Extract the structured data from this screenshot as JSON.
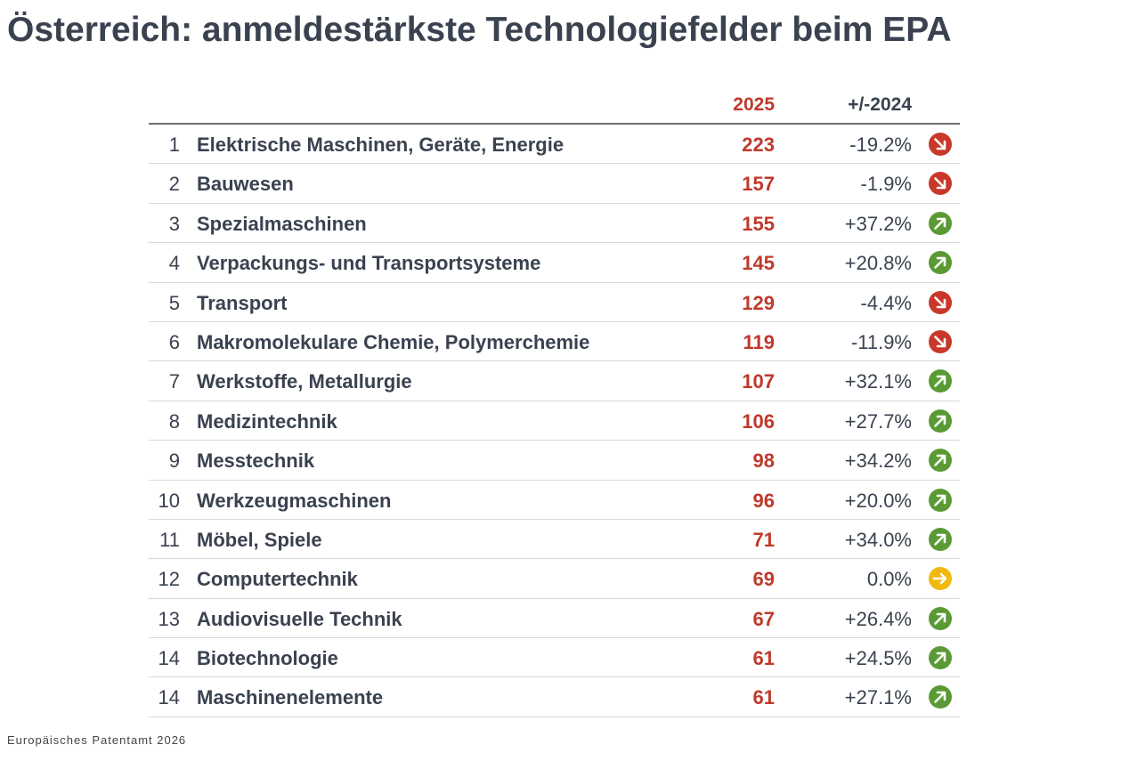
{
  "title": "Österreich: anmeldestärkste Technologiefelder beim EPA",
  "table": {
    "header": [
      "2025",
      "+/-2024"
    ],
    "rows": [
      [
        "1",
        "Elektrische Maschinen, Geräte, Energie",
        "223",
        "-19.2%"
      ],
      [
        "2",
        "Bauwesen",
        "157",
        "-1.9%"
      ],
      [
        "3",
        "Spezialmaschinen",
        "155",
        "+37.2%"
      ],
      [
        "4",
        "Verpackungs- und Transportsysteme",
        "145",
        "+20.8%"
      ],
      [
        "5",
        "Transport",
        "129",
        "-4.4%"
      ],
      [
        "6",
        "Makromolekulare Chemie, Polymerchemie",
        "119",
        "-11.9%"
      ],
      [
        "7",
        "Werkstoffe, Metallurgie",
        "107",
        "+32.1%"
      ],
      [
        "8",
        "Medizintechnik",
        "106",
        "+27.7%"
      ],
      [
        "9",
        "Messtechnik",
        "98",
        "+34.2%"
      ],
      [
        "10",
        "Werkzeugmaschinen",
        "96",
        "+20.0%"
      ],
      [
        "11",
        "Möbel, Spiele",
        "71",
        "+34.0%"
      ],
      [
        "12",
        "Computertechnik",
        "69",
        "0.0%"
      ],
      [
        "13",
        "Audiovisuelle Technik",
        "67",
        "+26.4%"
      ],
      [
        "14",
        "Biotechnologie",
        "61",
        "+24.5%"
      ],
      [
        "14",
        "Maschinenelemente",
        "61",
        "+27.1%"
      ]
    ]
  },
  "footer": "Europäisches Patentamt 2026"
}
